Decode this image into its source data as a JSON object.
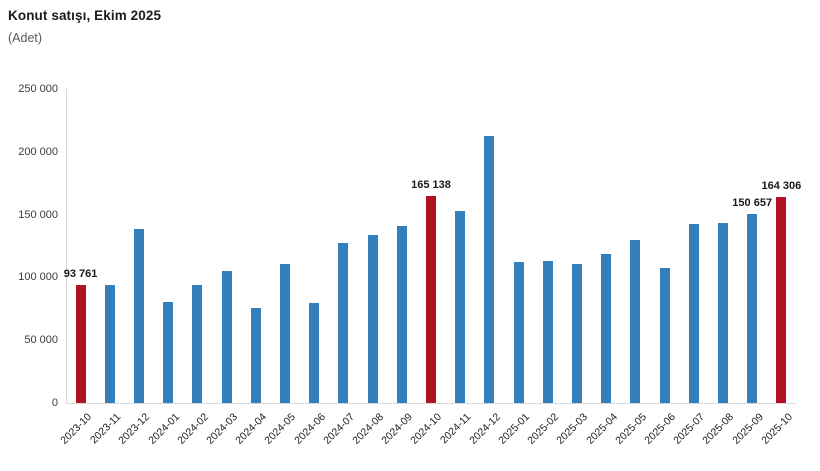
{
  "header": {
    "title": "Konut satışı, Ekim 2025",
    "unit_label": "(Adet)"
  },
  "chart_data": {
    "type": "bar",
    "title": "Konut satışı, Ekim 2025",
    "ylabel": "(Adet)",
    "xlabel": "",
    "categories": [
      "2023-10",
      "2023-11",
      "2023-12",
      "2024-01",
      "2024-02",
      "2024-03",
      "2024-04",
      "2024-05",
      "2024-06",
      "2024-07",
      "2024-08",
      "2024-09",
      "2024-10",
      "2024-11",
      "2024-12",
      "2025-01",
      "2025-02",
      "2025-03",
      "2025-04",
      "2025-05",
      "2025-06",
      "2025-07",
      "2025-08",
      "2025-09",
      "2025-10"
    ],
    "values": [
      93761,
      93748,
      138577,
      80308,
      93902,
      105476,
      75569,
      110588,
      79313,
      127088,
      134155,
      140919,
      165138,
      153014,
      212637,
      112173,
      112818,
      110795,
      118359,
      130025,
      107723,
      142858,
      143319,
      150657,
      164306
    ],
    "highlight_indices": [
      0,
      12,
      24
    ],
    "data_labels": [
      {
        "index": 0,
        "text": "93 761"
      },
      {
        "index": 12,
        "text": "165 138"
      },
      {
        "index": 23,
        "text": "150 657"
      },
      {
        "index": 24,
        "text": "164 306"
      }
    ],
    "ylim": [
      0,
      250000
    ],
    "yticks": [
      {
        "value": 250000,
        "label": "250 000"
      },
      {
        "value": 200000,
        "label": "200 000"
      },
      {
        "value": 150000,
        "label": "150 000"
      },
      {
        "value": 100000,
        "label": "100 000"
      },
      {
        "value": 50000,
        "label": "50 000"
      },
      {
        "value": 0,
        "label": "0"
      }
    ],
    "colors": {
      "bar": "#317fbd",
      "highlight": "#b01320",
      "axis": "#d9d9d9"
    },
    "grid": false,
    "legend": false,
    "x_label_rotation": -45
  }
}
